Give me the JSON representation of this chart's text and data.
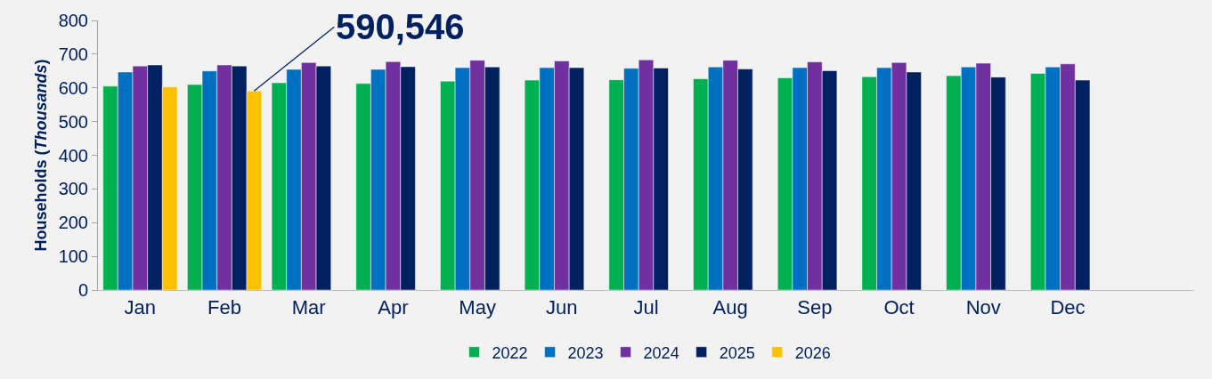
{
  "chart_data": {
    "type": "bar",
    "ylabel": "Households (Thousands)",
    "categories": [
      "Jan",
      "Feb",
      "Mar",
      "Apr",
      "May",
      "Jun",
      "Jul",
      "Aug",
      "Sep",
      "Oct",
      "Nov",
      "Dec",
      null
    ],
    "series": [
      {
        "name": "2022",
        "color": "#00b050",
        "values": [
          605,
          610,
          615,
          613,
          620,
          623,
          624,
          627,
          630,
          633,
          636,
          643,
          null
        ]
      },
      {
        "name": "2023",
        "color": "#0070c0",
        "values": [
          647,
          650,
          655,
          655,
          660,
          660,
          658,
          662,
          660,
          660,
          662,
          662,
          null
        ]
      },
      {
        "name": "2024",
        "color": "#7030a0",
        "values": [
          665,
          668,
          675,
          678,
          682,
          680,
          683,
          682,
          677,
          675,
          673,
          671,
          null
        ]
      },
      {
        "name": "2025",
        "color": "#002060",
        "values": [
          668,
          665,
          665,
          663,
          662,
          660,
          659,
          656,
          651,
          647,
          632,
          623,
          null
        ]
      },
      {
        "name": "2026",
        "color": "#ffc000",
        "values": [
          603,
          590.546,
          null,
          null,
          null,
          null,
          null,
          null,
          null,
          null,
          null,
          null,
          null
        ]
      }
    ],
    "ylim": [
      0,
      800
    ],
    "yticks": [
      0,
      100,
      200,
      300,
      400,
      500,
      600,
      700,
      800
    ],
    "grid": false,
    "legend": "bottom",
    "annotations": [
      {
        "text": "590,546",
        "y": 590.546
      }
    ]
  }
}
